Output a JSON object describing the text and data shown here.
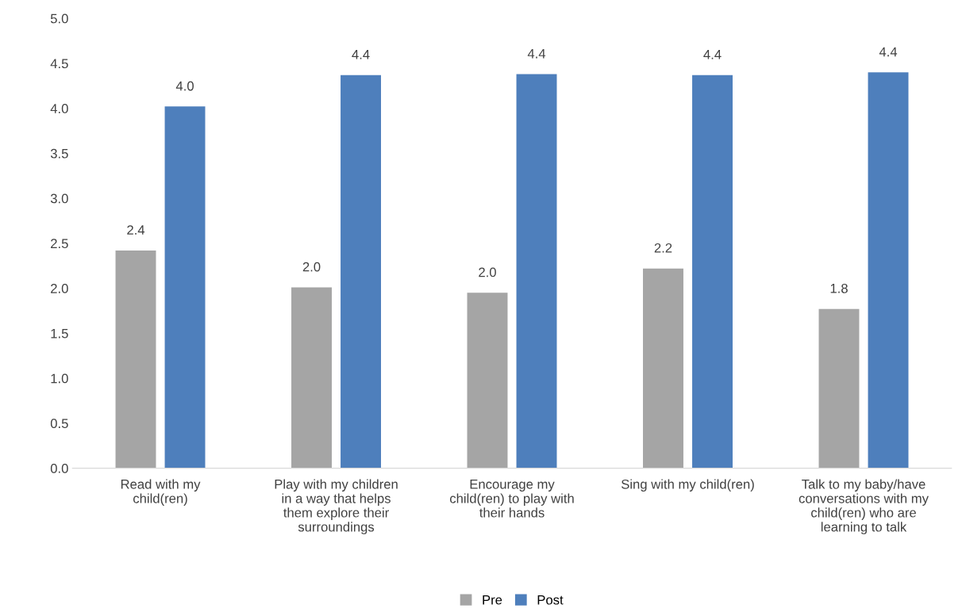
{
  "chart_data": {
    "type": "bar",
    "categories": [
      "Read with my\nchild(ren)",
      "Play with my children\nin a way that helps\nthem explore their\nsurroundings",
      "Encourage my\nchild(ren) to play with\ntheir hands",
      "Sing with my child(ren)",
      "Talk to my baby/have\nconversations with my\nchild(ren) who are\nlearning to talk"
    ],
    "series": [
      {
        "name": "Pre",
        "color": "#a5a5a5",
        "values": [
          2.42,
          2.01,
          1.95,
          2.22,
          1.77
        ],
        "value_labels": [
          "2.4",
          "2.0",
          "2.0",
          "2.2",
          "1.8"
        ]
      },
      {
        "name": "Post",
        "color": "#4e7fbc",
        "values": [
          4.02,
          4.37,
          4.38,
          4.37,
          4.4
        ],
        "value_labels": [
          "4.0",
          "4.4",
          "4.4",
          "4.4",
          "4.4"
        ]
      }
    ],
    "ylim": [
      0,
      5
    ],
    "yticks": [
      {
        "value": 0,
        "label": "0.0"
      },
      {
        "value": 0.5,
        "label": "0.5"
      },
      {
        "value": 1,
        "label": "1.0"
      },
      {
        "value": 1.5,
        "label": "1.5"
      },
      {
        "value": 2,
        "label": "2.0"
      },
      {
        "value": 2.5,
        "label": "2.5"
      },
      {
        "value": 3,
        "label": "3.0"
      },
      {
        "value": 3.5,
        "label": "3.5"
      },
      {
        "value": 4,
        "label": "4.0"
      },
      {
        "value": 4.5,
        "label": "4.5"
      },
      {
        "value": 5,
        "label": "5.0"
      }
    ],
    "grid": false,
    "legend": "bottom"
  }
}
